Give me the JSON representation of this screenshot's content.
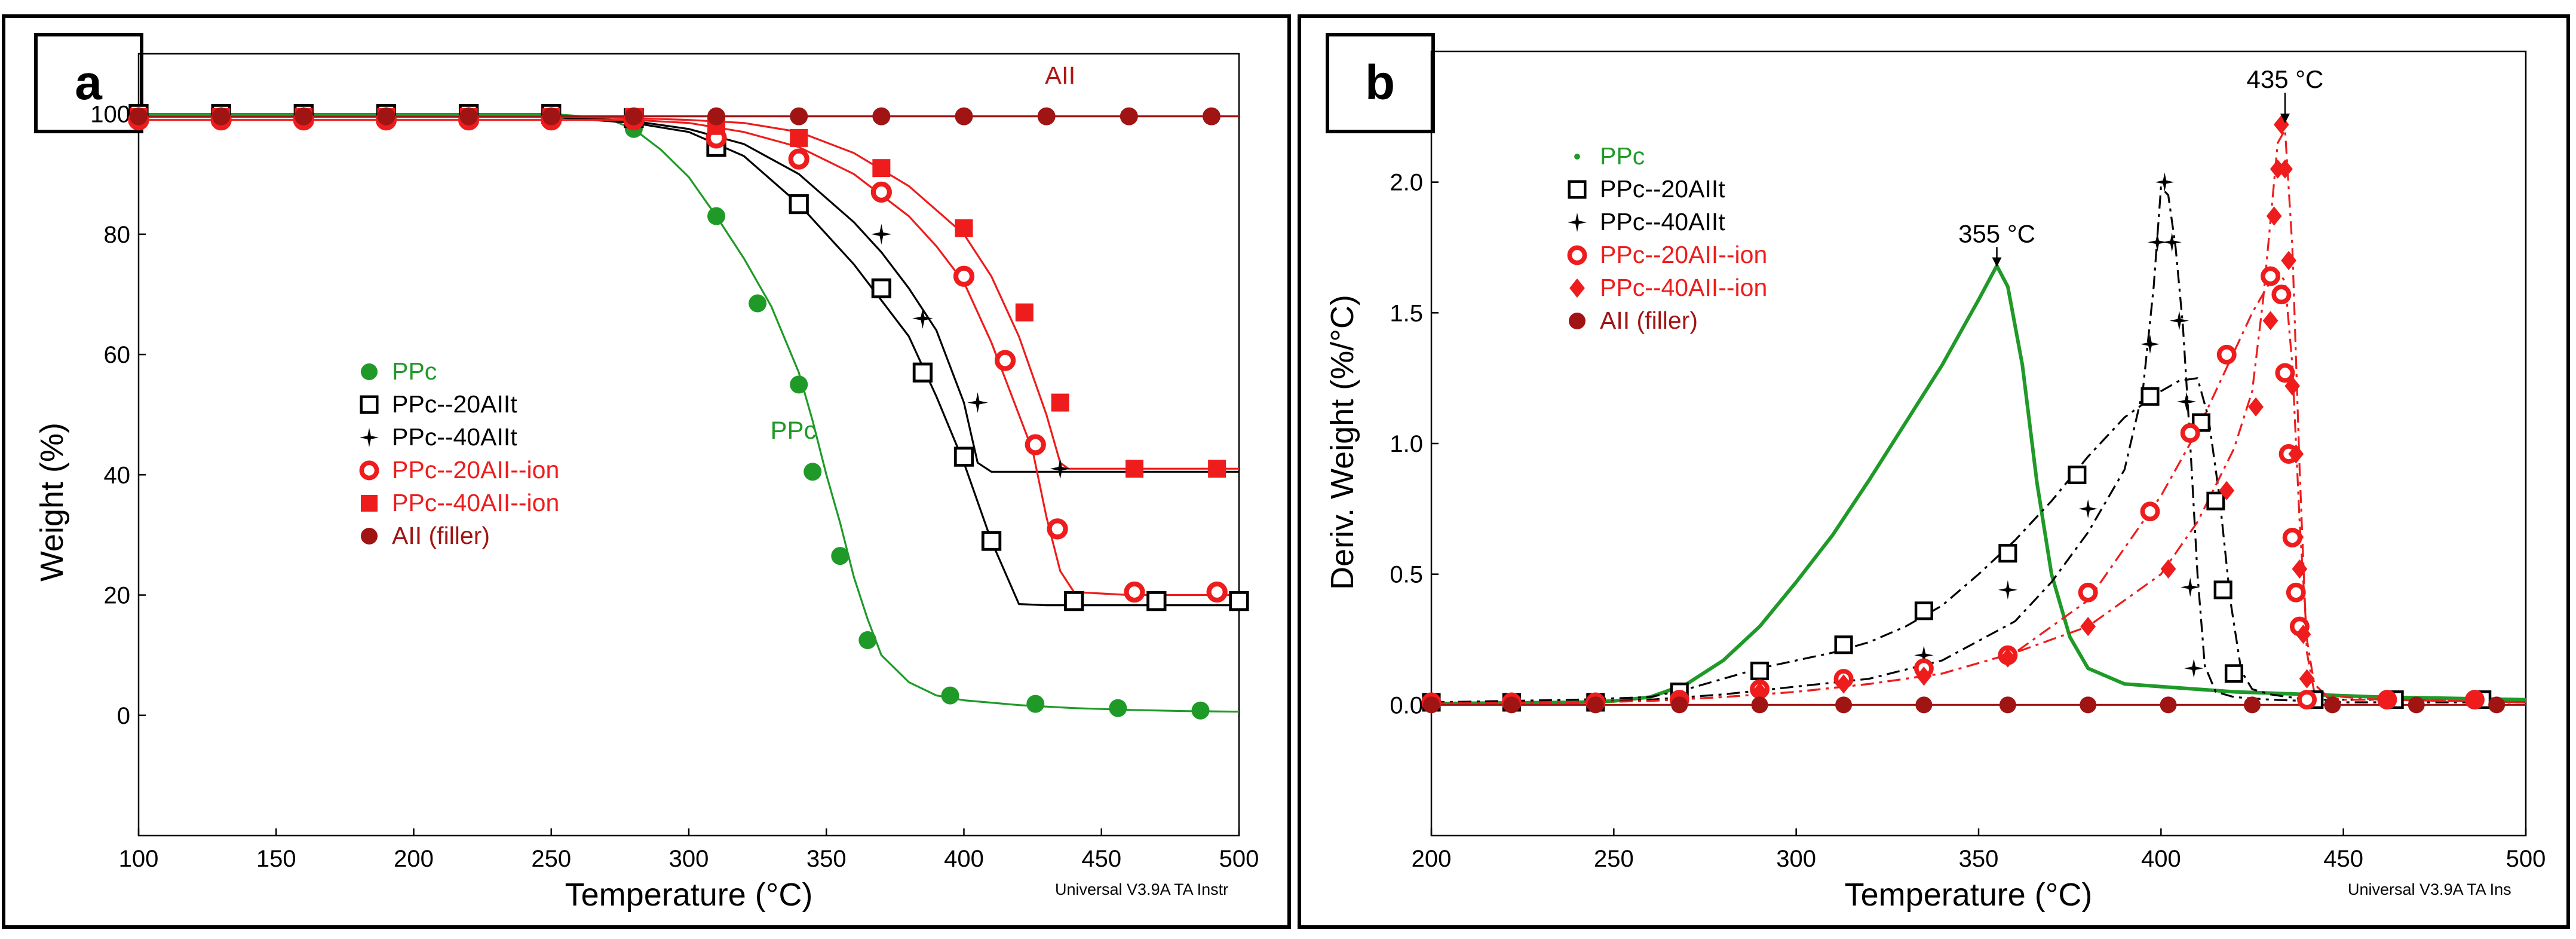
{
  "chart_data": [
    {
      "panel_label": "a",
      "type": "line",
      "xlabel": "Temperature (°C)",
      "ylabel": "Weight (%)",
      "xlim": [
        100,
        500
      ],
      "ylim": [
        -20,
        110
      ],
      "xticks": [
        100,
        150,
        200,
        250,
        300,
        350,
        400,
        450,
        500
      ],
      "yticks": [
        0,
        20,
        40,
        60,
        80,
        100
      ],
      "credit": "Universal V3.9A TA Instr",
      "annotations": [
        {
          "text": "AII",
          "x": 435,
          "y": 105,
          "color": "#b01818"
        },
        {
          "text": "PPc",
          "x": 338,
          "y": 46,
          "color": "#1f9a28"
        }
      ],
      "series": [
        {
          "name": "PPc",
          "color": "#1f9a28",
          "marker": "circle",
          "curve_x": [
            100,
            250,
            270,
            280,
            290,
            300,
            310,
            320,
            330,
            340,
            345,
            350,
            355,
            360,
            365,
            370,
            380,
            390,
            400,
            420,
            440,
            460,
            480,
            500
          ],
          "curve_y": [
            100,
            100,
            99.3,
            97.5,
            94,
            89.5,
            83,
            76,
            68,
            57,
            49,
            40,
            32,
            23,
            16,
            10,
            5.5,
            3.3,
            2.5,
            1.7,
            1.2,
            0.9,
            0.7,
            0.6
          ],
          "markers_x": [
            100,
            130,
            160,
            190,
            220,
            250,
            280,
            310,
            325,
            340,
            345,
            355,
            365,
            395,
            426,
            456,
            486
          ],
          "markers_y": [
            100,
            100,
            100,
            100,
            100,
            100,
            97.5,
            83,
            68.5,
            55,
            40.5,
            26.5,
            12.5,
            3.3,
            1.9,
            1.2,
            0.8
          ]
        },
        {
          "name": "PPc--20AIIt",
          "color": "#000000",
          "marker": "square-open",
          "curve_x": [
            100,
            250,
            280,
            300,
            320,
            340,
            360,
            370,
            380,
            390,
            400,
            410,
            420,
            430,
            440,
            460,
            500
          ],
          "curve_y": [
            99.5,
            99.5,
            98.5,
            97,
            93,
            85,
            75,
            69,
            63,
            53,
            42,
            29,
            18.5,
            18.3,
            18.3,
            18.3,
            18.3
          ],
          "markers_x": [
            100,
            130,
            160,
            190,
            220,
            250,
            280,
            310,
            340,
            370,
            385,
            400,
            410,
            440,
            470,
            500
          ],
          "markers_y": [
            100,
            100,
            100,
            100,
            100,
            100,
            99.3,
            94.5,
            85,
            71,
            57,
            43,
            29,
            19,
            19,
            19
          ]
        },
        {
          "name": "PPc--40AIIt",
          "color": "#000000",
          "marker": "star",
          "curve_x": [
            100,
            250,
            280,
            300,
            320,
            340,
            360,
            370,
            380,
            390,
            400,
            405,
            410,
            430,
            460,
            500
          ],
          "curve_y": [
            99.5,
            99.5,
            98.8,
            97.5,
            95,
            90,
            82,
            77,
            71,
            64,
            52,
            42,
            40.5,
            40.5,
            40.5,
            40.5
          ],
          "markers_x": [
            100,
            130,
            160,
            190,
            220,
            250,
            280,
            310,
            340,
            370,
            385,
            405,
            435
          ],
          "markers_y": [
            99.5,
            99.5,
            99.5,
            99.5,
            99.5,
            99.5,
            99.3,
            96.5,
            92.5,
            80,
            66,
            52,
            41
          ]
        },
        {
          "name": "PPc--20AII--ion",
          "color": "#ee1c1c",
          "marker": "circle-open",
          "curve_x": [
            100,
            250,
            280,
            300,
            320,
            340,
            360,
            380,
            390,
            400,
            410,
            420,
            425,
            430,
            435,
            440,
            460,
            500
          ],
          "curve_y": [
            99,
            99,
            99,
            98.5,
            97,
            94.5,
            90,
            83,
            78,
            72,
            62,
            50,
            44,
            33,
            24,
            20.5,
            20,
            20
          ],
          "markers_x": [
            100,
            130,
            160,
            190,
            220,
            250,
            280,
            310,
            340,
            370,
            400,
            415,
            426,
            434,
            462,
            492
          ],
          "markers_y": [
            99,
            99,
            99,
            99,
            99,
            99,
            99,
            96,
            92.5,
            87,
            73,
            59,
            45,
            31,
            20.5,
            20.5
          ],
          "ring_color": "#ffffff"
        },
        {
          "name": "PPc--40AII--ion",
          "color": "#ee1c1c",
          "marker": "square",
          "curve_x": [
            100,
            250,
            280,
            300,
            320,
            340,
            360,
            380,
            400,
            410,
            420,
            430,
            435,
            438,
            440,
            460,
            500
          ],
          "curve_y": [
            99.5,
            99.5,
            99.3,
            99,
            98.5,
            97,
            93.5,
            88,
            80,
            73,
            63,
            50,
            42,
            41,
            41,
            41,
            41
          ],
          "markers_x": [
            100,
            130,
            160,
            190,
            220,
            250,
            280,
            310,
            340,
            370,
            400,
            422,
            435,
            462,
            492
          ],
          "markers_y": [
            99.5,
            99.5,
            99.5,
            99.5,
            99.5,
            99.5,
            99.5,
            98,
            96,
            91,
            81,
            67,
            52,
            41,
            41
          ]
        },
        {
          "name": "AII (filler)",
          "color": "#a01414",
          "marker": "circle",
          "curve_x": [
            100,
            500
          ],
          "curve_y": [
            99.6,
            99.6
          ],
          "markers_x": [
            100,
            130,
            160,
            190,
            220,
            250,
            280,
            310,
            340,
            370,
            400,
            430,
            460,
            490
          ],
          "markers_y": [
            99.6,
            99.6,
            99.6,
            99.6,
            99.6,
            99.6,
            99.6,
            99.6,
            99.6,
            99.6,
            99.6,
            99.6,
            99.6,
            99.6
          ]
        }
      ]
    },
    {
      "panel_label": "b",
      "type": "line",
      "xlabel": "Temperature (°C)",
      "ylabel": "Deriv. Weight (%/°C)",
      "xlim": [
        200,
        500
      ],
      "ylim": [
        -0.5,
        2.5
      ],
      "xticks": [
        200,
        250,
        300,
        350,
        400,
        450,
        500
      ],
      "yticks": [
        0.0,
        0.5,
        1.0,
        1.5,
        2.0
      ],
      "ytick_labels": [
        "0.0",
        "0.5",
        "1.0",
        "1.5",
        "2.0"
      ],
      "credit": "Universal V3.9A TA Ins",
      "annotations": [
        {
          "text": "355 °C",
          "x": 355,
          "y": 1.77,
          "color": "#000000",
          "arrow_to_y": 1.68
        },
        {
          "text": "435 °C",
          "x": 434,
          "y": 2.36,
          "color": "#000000",
          "arrow_to_y": 2.23
        }
      ],
      "series": [
        {
          "name": "PPc",
          "color": "#1f9a28",
          "marker": "small-dot",
          "curve_x": [
            200,
            240,
            250,
            260,
            270,
            280,
            290,
            300,
            310,
            320,
            330,
            340,
            350,
            355,
            358,
            362,
            366,
            370,
            375,
            380,
            390,
            400,
            410,
            420,
            440,
            460,
            500
          ],
          "curve_y": [
            0.005,
            0.01,
            0.015,
            0.03,
            0.08,
            0.17,
            0.3,
            0.47,
            0.65,
            0.86,
            1.08,
            1.3,
            1.55,
            1.68,
            1.6,
            1.3,
            0.85,
            0.5,
            0.26,
            0.14,
            0.08,
            0.07,
            0.06,
            0.05,
            0.04,
            0.03,
            0.02
          ],
          "markers_x": [],
          "markers_y": []
        },
        {
          "name": "PPc--20AIIt",
          "color": "#000000",
          "marker": "square-open",
          "dash": "22,9,5,9",
          "curve_x": [
            200,
            240,
            250,
            260,
            270,
            280,
            290,
            300,
            310,
            320,
            330,
            340,
            350,
            360,
            370,
            380,
            390,
            400,
            405,
            410,
            413,
            416,
            419,
            422,
            425,
            430,
            440,
            460,
            500
          ],
          "curve_y": [
            0.01,
            0.02,
            0.025,
            0.03,
            0.06,
            0.1,
            0.14,
            0.17,
            0.2,
            0.24,
            0.3,
            0.38,
            0.5,
            0.63,
            0.78,
            0.95,
            1.1,
            1.2,
            1.24,
            1.25,
            1.1,
            0.8,
            0.4,
            0.13,
            0.06,
            0.04,
            0.02,
            0.02,
            0.01
          ],
          "markers_x": [
            200,
            222,
            245,
            268,
            290,
            313,
            335,
            358,
            377,
            397,
            411,
            415,
            417,
            420,
            442,
            464,
            488
          ],
          "markers_y": [
            0.01,
            0.01,
            0.01,
            0.05,
            0.13,
            0.23,
            0.36,
            0.58,
            0.88,
            1.18,
            1.08,
            0.78,
            0.44,
            0.12,
            0.02,
            0.02,
            0.02
          ]
        },
        {
          "name": "PPc--40AIIt",
          "color": "#000000",
          "marker": "star",
          "dash": "22,9,5,9",
          "curve_x": [
            200,
            240,
            260,
            280,
            300,
            320,
            340,
            360,
            370,
            380,
            390,
            395,
            398,
            400,
            402,
            404,
            406,
            408,
            410,
            412,
            415,
            420,
            430,
            450,
            500
          ],
          "curve_y": [
            0.005,
            0.01,
            0.02,
            0.04,
            0.07,
            0.1,
            0.17,
            0.32,
            0.47,
            0.66,
            0.9,
            1.2,
            1.6,
            1.98,
            1.95,
            1.75,
            1.45,
            1.0,
            0.5,
            0.15,
            0.05,
            0.03,
            0.02,
            0.01,
            0.01
          ],
          "markers_x": [
            200,
            222,
            245,
            268,
            313,
            335,
            358,
            380,
            397,
            399,
            401,
            403,
            405,
            407,
            409
          ],
          "markers_y": [
            0.01,
            0.01,
            0.01,
            0.02,
            0.09,
            0.19,
            0.44,
            0.75,
            1.38,
            1.77,
            2.0,
            1.77,
            1.47,
            1.16,
            0.14
          ],
          "extra_markers_x": [
            408
          ],
          "extra_markers_y": [
            0.45
          ]
        },
        {
          "name": "PPc--20AII--ion",
          "color": "#ee1c1c",
          "marker": "circle-open",
          "dash": "22,9,5,9",
          "curve_x": [
            200,
            240,
            260,
            280,
            300,
            320,
            340,
            360,
            380,
            400,
            410,
            420,
            425,
            430,
            432,
            434,
            436,
            438,
            440,
            442,
            445,
            450,
            460,
            500
          ],
          "curve_y": [
            0.005,
            0.01,
            0.015,
            0.03,
            0.05,
            0.08,
            0.12,
            0.2,
            0.4,
            0.8,
            1.05,
            1.35,
            1.5,
            1.62,
            1.66,
            1.62,
            1.3,
            0.7,
            0.25,
            0.08,
            0.04,
            0.03,
            0.02,
            0.01
          ],
          "markers_x": [
            200,
            222,
            245,
            268,
            290,
            313,
            335,
            358,
            380,
            397,
            408,
            418,
            430,
            433,
            434,
            435,
            436,
            437,
            438,
            440,
            462,
            486
          ],
          "markers_y": [
            0.01,
            0.01,
            0.01,
            0.02,
            0.06,
            0.1,
            0.14,
            0.19,
            0.43,
            0.74,
            1.04,
            1.34,
            1.64,
            1.57,
            1.27,
            0.96,
            0.64,
            0.43,
            0.3,
            0.02,
            0.02,
            0.02
          ]
        },
        {
          "name": "PPc--40AII--ion",
          "color": "#ee1c1c",
          "marker": "diamond",
          "dash": "22,9,5,9",
          "curve_x": [
            200,
            240,
            260,
            280,
            300,
            320,
            340,
            360,
            380,
            400,
            410,
            420,
            425,
            428,
            430,
            432,
            434,
            436,
            438,
            440,
            442,
            445,
            450,
            460,
            500
          ],
          "curve_y": [
            0.005,
            0.01,
            0.015,
            0.03,
            0.05,
            0.08,
            0.12,
            0.2,
            0.3,
            0.5,
            0.7,
            0.98,
            1.2,
            1.55,
            1.85,
            2.15,
            2.2,
            1.75,
            0.9,
            0.2,
            0.05,
            0.03,
            0.02,
            0.02,
            0.01
          ],
          "markers_x": [
            200,
            222,
            245,
            268,
            290,
            313,
            335,
            358,
            380,
            402,
            418,
            426,
            430,
            431,
            432,
            433,
            434,
            435,
            436,
            437,
            438,
            439,
            440,
            462,
            486
          ],
          "markers_y": [
            0.01,
            0.01,
            0.01,
            0.02,
            0.05,
            0.08,
            0.11,
            0.18,
            0.3,
            0.52,
            0.82,
            1.14,
            1.47,
            1.87,
            2.05,
            2.22,
            2.05,
            1.7,
            1.22,
            0.96,
            0.52,
            0.27,
            0.1,
            0.02,
            0.02
          ]
        },
        {
          "name": "AII (filler)",
          "color": "#a01414",
          "marker": "circle",
          "curve_x": [
            200,
            500
          ],
          "curve_y": [
            0.0,
            0.0
          ],
          "markers_x": [
            200,
            222,
            245,
            268,
            290,
            313,
            335,
            358,
            380,
            402,
            425,
            447,
            470,
            492
          ],
          "markers_y": [
            0,
            0,
            0,
            0,
            0,
            0,
            0,
            0,
            0,
            0,
            0,
            0,
            0,
            0
          ]
        }
      ]
    }
  ]
}
